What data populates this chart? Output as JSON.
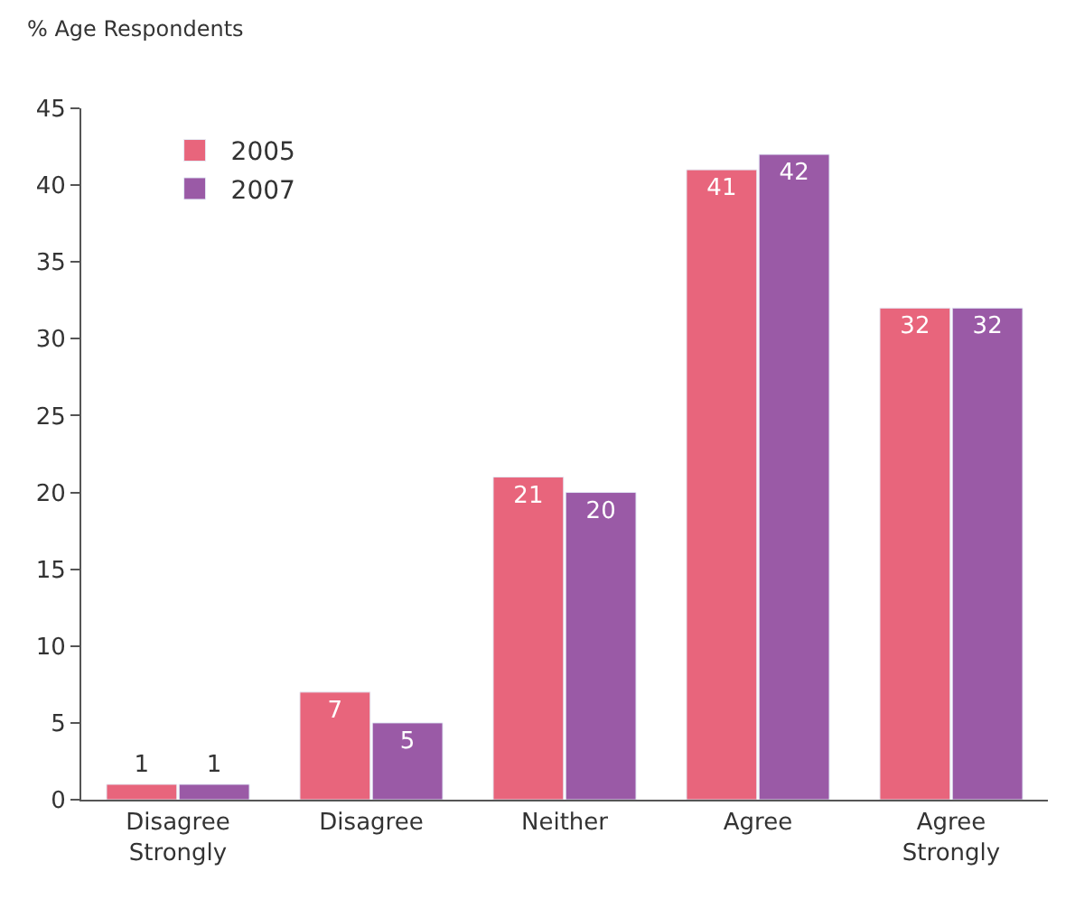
{
  "chart_data": {
    "type": "bar",
    "ylabel": "% Age Respondents",
    "categories": [
      "Disagree Strongly",
      "Disagree",
      "Neither",
      "Agree",
      "Agree Strongly"
    ],
    "series": [
      {
        "name": "2005",
        "color": "#e8657c",
        "values": [
          1,
          7,
          21,
          41,
          32
        ]
      },
      {
        "name": "2007",
        "color": "#9a5aa6",
        "values": [
          1,
          5,
          20,
          42,
          32
        ]
      }
    ],
    "ylim": [
      0,
      45
    ],
    "yticks": [
      0,
      5,
      10,
      15,
      20,
      25,
      30,
      35,
      40,
      45
    ],
    "data_labels": true,
    "legend": "top left"
  }
}
